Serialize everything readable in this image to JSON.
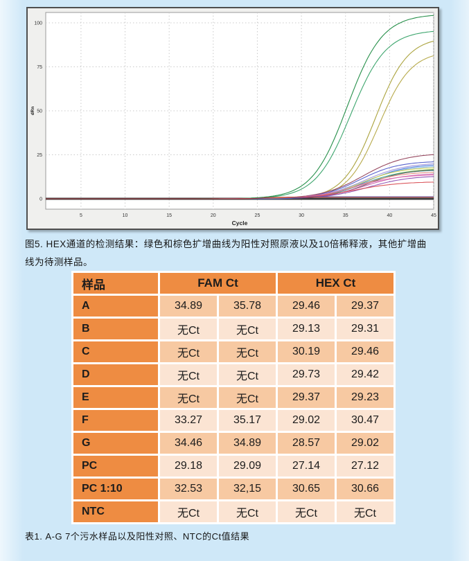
{
  "page": {
    "background": "#cfe8f8"
  },
  "figure_caption": {
    "lines": [
      "图5. HEX通道的检测结果：绿色和棕色扩增曲线为阳性对照原液以及10倍稀释液，其他扩增曲",
      "线为待测样品。"
    ]
  },
  "table_caption": {
    "text": "表1. A-G 7个污水样品以及阳性对照、NTC的Ct值结果"
  },
  "chart_data": {
    "type": "line",
    "title": "",
    "xlabel": "Cycle",
    "ylabel": "dRn",
    "xlim": [
      1,
      45
    ],
    "ylim": [
      -5,
      110
    ],
    "xticks": [
      5,
      10,
      15,
      20,
      25,
      30,
      35,
      40,
      45
    ],
    "yticks": [
      0,
      25,
      50,
      75,
      100
    ],
    "grid": true,
    "legend": "none",
    "series_model": "value(cycle) = plateau / (1 + exp(-steepness * (cycle - midpoint)))",
    "series": [
      {
        "name": "positive-control-1",
        "color": "#12863a",
        "plateau": 105,
        "midpoint": 35.2,
        "steepness": 0.5
      },
      {
        "name": "positive-control-2",
        "color": "#2e9e62",
        "plateau": 96,
        "midpoint": 35.6,
        "steepness": 0.5
      },
      {
        "name": "positive-control-1to10-1",
        "color": "#a49b2c",
        "plateau": 92,
        "midpoint": 38.4,
        "steepness": 0.55
      },
      {
        "name": "positive-control-1to10-2",
        "color": "#b1a33c",
        "plateau": 84,
        "midpoint": 38.8,
        "steepness": 0.55
      },
      {
        "name": "sample-1",
        "color": "#8e3a52",
        "plateau": 26.0,
        "midpoint": 37.0,
        "steepness": 0.42
      },
      {
        "name": "sample-2",
        "color": "#4a55c8",
        "plateau": 21.5,
        "midpoint": 36.6,
        "steepness": 0.45
      },
      {
        "name": "sample-3",
        "color": "#9b8fd8",
        "plateau": 20.6,
        "midpoint": 37.1,
        "steepness": 0.42
      },
      {
        "name": "sample-4",
        "color": "#3a6fd8",
        "plateau": 19.7,
        "midpoint": 37.4,
        "steepness": 0.45
      },
      {
        "name": "sample-5",
        "color": "#7ab0e0",
        "plateau": 18.9,
        "midpoint": 37.0,
        "steepness": 0.42
      },
      {
        "name": "sample-6",
        "color": "#d6d64e",
        "plateau": 18.0,
        "midpoint": 36.8,
        "steepness": 0.45
      },
      {
        "name": "sample-7",
        "color": "#86c860",
        "plateau": 17.4,
        "midpoint": 37.2,
        "steepness": 0.42
      },
      {
        "name": "sample-8",
        "color": "#38a8a0",
        "plateau": 16.5,
        "midpoint": 36.9,
        "steepness": 0.45
      },
      {
        "name": "sample-9",
        "color": "#585858",
        "plateau": 16.9,
        "midpoint": 37.5,
        "steepness": 0.45
      },
      {
        "name": "sample-10",
        "color": "#e08574",
        "plateau": 15.5,
        "midpoint": 36.6,
        "steepness": 0.42
      },
      {
        "name": "sample-11",
        "color": "#c85aaa",
        "plateau": 14.6,
        "midpoint": 37.2,
        "steepness": 0.42
      },
      {
        "name": "sample-12",
        "color": "#8a4ab0",
        "plateau": 13.2,
        "midpoint": 37.6,
        "steepness": 0.42
      },
      {
        "name": "sample-13",
        "color": "#e274b4",
        "plateau": 13.9,
        "midpoint": 36.2,
        "steepness": 0.4
      },
      {
        "name": "sample-14",
        "color": "#d84a50",
        "plateau": 9.8,
        "midpoint": 36.0,
        "steepness": 0.38
      },
      {
        "name": "no-amplification-1",
        "color": "#e0883a",
        "plateau": 1.0,
        "midpoint": 27.5,
        "steepness": 1.5
      },
      {
        "name": "no-amplification-2",
        "color": "#4a6ad8",
        "plateau": 1.2,
        "midpoint": 29.5,
        "steepness": 1.5
      },
      {
        "name": "no-amplification-3",
        "color": "#b03a3a",
        "plateau": 0.9,
        "midpoint": 25.5,
        "steepness": 1.5
      }
    ]
  },
  "ct_table": {
    "type": "table",
    "col_headers": [
      "样品",
      "FAM Ct",
      "HEX Ct"
    ],
    "rows": [
      {
        "label": "A",
        "values": [
          "34.89",
          "35.78",
          "29.46",
          "29.37"
        ]
      },
      {
        "label": "B",
        "values": [
          "无Ct",
          "无Ct",
          "29.13",
          "29.31"
        ]
      },
      {
        "label": "C",
        "values": [
          "无Ct",
          "无Ct",
          "30.19",
          "29.46"
        ]
      },
      {
        "label": "D",
        "values": [
          "无Ct",
          "无Ct",
          "29.73",
          "29.42"
        ]
      },
      {
        "label": "E",
        "values": [
          "无Ct",
          "无Ct",
          "29.37",
          "29.23"
        ]
      },
      {
        "label": "F",
        "values": [
          "33.27",
          "35.17",
          "29.02",
          "30.47"
        ]
      },
      {
        "label": "G",
        "values": [
          "34.46",
          "34.89",
          "28.57",
          "29.02"
        ]
      },
      {
        "label": "PC",
        "values": [
          "29.18",
          "29.09",
          "27.14",
          "27.12"
        ]
      },
      {
        "label": "PC 1:10",
        "values": [
          "32.53",
          "32,15",
          "30.65",
          "30.66"
        ]
      },
      {
        "label": "NTC",
        "values": [
          "无Ct",
          "无Ct",
          "无Ct",
          "无Ct"
        ]
      }
    ]
  },
  "colors": {
    "header_orange": "#ee8c42",
    "row_dark": "#f7c9a2",
    "row_light": "#fbe4d3",
    "table_gap": "#ffffff",
    "panel_bg": "#f0f0ee",
    "panel_border": "#4e4e4e",
    "baseline": "#3c3c3c",
    "gridline": "#c9c9c9",
    "page_blue": "#cfe8f8"
  }
}
